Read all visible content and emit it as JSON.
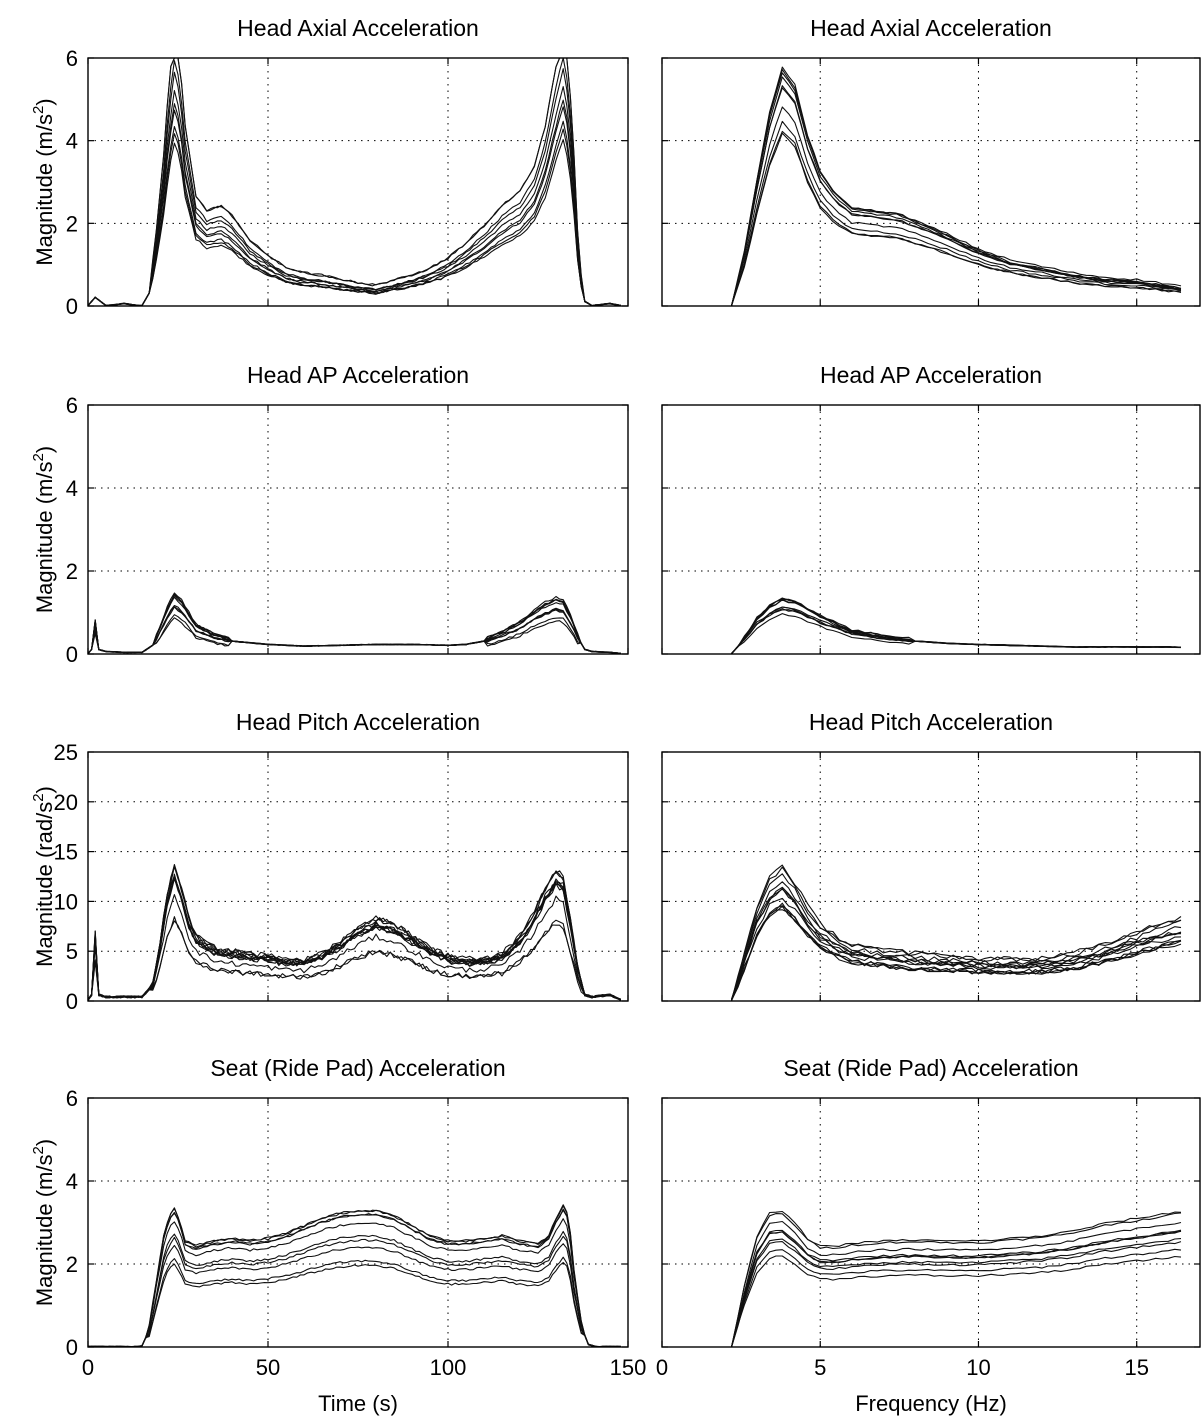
{
  "figure": {
    "x_label_time": "Time (s)",
    "x_label_freq": "Frequency (Hz)",
    "x_ticks_time": [
      "0",
      "50",
      "100",
      "150"
    ],
    "x_ticks_freq": [
      "0",
      "5",
      "10",
      "15"
    ]
  },
  "chart_data": [
    {
      "type": "line",
      "title": "Head Axial Acceleration",
      "xlabel": "",
      "ylabel": "Magnitude (m/s²)",
      "ylabel_base": "Magnitude (m/s",
      "ylabel_unit_sup": "2",
      "xlim": [
        0,
        150
      ],
      "ylim": [
        0,
        6
      ],
      "yticks": [
        0,
        2,
        4,
        6
      ],
      "ytick_labels": [
        "0",
        "2",
        "4",
        "6"
      ],
      "grid": true,
      "line_color": "#111111",
      "envelope": {
        "x": [
          0,
          2,
          5,
          10,
          14,
          15,
          17,
          19,
          21,
          22.5,
          24,
          25.5,
          27,
          30,
          33,
          37,
          40,
          45,
          50,
          55,
          60,
          65,
          70,
          75,
          80,
          85,
          90,
          95,
          100,
          105,
          110,
          115,
          120,
          124,
          127,
          129,
          130.5,
          132,
          133.5,
          135,
          136,
          137,
          138,
          140,
          145,
          148
        ],
        "y": [
          0,
          0.2,
          0,
          0.05,
          0,
          0,
          0.3,
          1.5,
          3.0,
          4.5,
          5.4,
          4.9,
          3.6,
          2.2,
          1.9,
          2.0,
          1.8,
          1.3,
          1.0,
          0.75,
          0.65,
          0.6,
          0.52,
          0.45,
          0.4,
          0.5,
          0.6,
          0.75,
          0.95,
          1.25,
          1.6,
          2.0,
          2.3,
          2.8,
          3.6,
          4.4,
          5.0,
          5.5,
          4.8,
          3.0,
          1.5,
          0.6,
          0.1,
          0,
          0.05,
          0
        ]
      },
      "n_traces": 10
    },
    {
      "type": "line",
      "title": "Head Axial Acceleration",
      "xlabel": "",
      "ylabel": "",
      "xlim": [
        0,
        17
      ],
      "ylim": [
        0,
        6
      ],
      "yticks": [
        0,
        2,
        4,
        6
      ],
      "grid": true,
      "line_color": "#111111",
      "envelope": {
        "x": [
          2.2,
          2.6,
          3.0,
          3.4,
          3.8,
          4.2,
          4.6,
          5.0,
          5.5,
          6.0,
          7.0,
          7.5,
          8.0,
          9.0,
          10.0,
          11.0,
          12.0,
          13.0,
          14.0,
          15.0,
          16.0,
          16.5
        ],
        "y": [
          0,
          1.2,
          2.8,
          4.3,
          5.3,
          4.9,
          3.8,
          3.0,
          2.5,
          2.2,
          2.1,
          2.05,
          1.9,
          1.6,
          1.25,
          1.0,
          0.85,
          0.7,
          0.6,
          0.55,
          0.45,
          0.4
        ]
      },
      "n_traces": 10
    },
    {
      "type": "line",
      "title": "Head AP Acceleration",
      "xlabel": "",
      "ylabel": "Magnitude (m/s²)",
      "ylabel_base": "Magnitude (m/s",
      "ylabel_unit_sup": "2",
      "xlim": [
        0,
        150
      ],
      "ylim": [
        0,
        6
      ],
      "yticks": [
        0,
        2,
        4,
        6
      ],
      "ytick_labels": [
        "0",
        "2",
        "4",
        "6"
      ],
      "grid": true,
      "line_color": "#111111",
      "envelope": {
        "x": [
          0,
          1,
          2,
          3,
          5,
          10,
          15,
          18,
          20,
          22,
          24,
          26,
          28,
          30,
          35,
          40,
          50,
          60,
          70,
          80,
          90,
          100,
          105,
          110,
          115,
          120,
          124,
          127,
          130,
          132,
          134,
          136,
          138,
          140,
          145,
          148
        ],
        "y": [
          0,
          0.1,
          0.7,
          0.1,
          0.05,
          0.03,
          0.03,
          0.2,
          0.55,
          0.95,
          1.25,
          1.1,
          0.85,
          0.6,
          0.4,
          0.3,
          0.22,
          0.18,
          0.2,
          0.22,
          0.22,
          0.2,
          0.22,
          0.3,
          0.45,
          0.65,
          0.9,
          1.05,
          1.15,
          1.1,
          0.8,
          0.4,
          0.1,
          0.05,
          0.03,
          0
        ]
      },
      "n_traces": 10
    },
    {
      "type": "line",
      "title": "Head AP Acceleration",
      "xlabel": "",
      "ylabel": "",
      "xlim": [
        0,
        17
      ],
      "ylim": [
        0,
        6
      ],
      "yticks": [
        0,
        2,
        4,
        6
      ],
      "grid": true,
      "line_color": "#111111",
      "envelope": {
        "x": [
          2.2,
          2.6,
          3.0,
          3.4,
          3.8,
          4.2,
          4.6,
          5.0,
          5.5,
          6.0,
          7.0,
          8.0,
          9.0,
          10.0,
          11.0,
          12.0,
          13.0,
          14.0,
          15.0,
          16.0,
          16.5
        ],
        "y": [
          0,
          0.35,
          0.75,
          1.0,
          1.15,
          1.1,
          0.95,
          0.8,
          0.65,
          0.5,
          0.38,
          0.3,
          0.25,
          0.22,
          0.2,
          0.18,
          0.16,
          0.16,
          0.16,
          0.16,
          0.15
        ]
      },
      "n_traces": 10
    },
    {
      "type": "line",
      "title": "Head Pitch Acceleration",
      "xlabel": "",
      "ylabel": "Magnitude (rad/s²)",
      "ylabel_base": "Magnitude (rad/s",
      "ylabel_unit_sup": "2",
      "xlim": [
        0,
        150
      ],
      "ylim": [
        0,
        25
      ],
      "yticks": [
        0,
        5,
        10,
        15,
        20,
        25
      ],
      "ytick_labels": [
        "0",
        "5",
        "10",
        "15",
        "20",
        "25"
      ],
      "grid": true,
      "line_color": "#111111",
      "envelope": {
        "x": [
          0,
          1,
          2,
          3,
          5,
          10,
          15,
          18,
          20,
          22,
          24,
          26,
          28,
          30,
          35,
          40,
          45,
          50,
          55,
          60,
          65,
          70,
          75,
          80,
          85,
          90,
          95,
          100,
          105,
          110,
          115,
          120,
          124,
          127,
          130,
          132,
          134,
          136,
          138,
          140,
          145,
          148
        ],
        "y": [
          0,
          0.5,
          6.0,
          0.5,
          0.3,
          0.3,
          0.3,
          1.5,
          5.0,
          9.0,
          11.5,
          9.5,
          7.0,
          5.5,
          4.5,
          4.2,
          4.0,
          3.8,
          3.5,
          3.5,
          4.0,
          5.0,
          6.2,
          7.0,
          6.5,
          5.5,
          4.5,
          3.8,
          3.5,
          3.6,
          4.0,
          5.5,
          7.5,
          9.5,
          11.0,
          10.5,
          7.0,
          3.0,
          0.5,
          0.3,
          0.5,
          0
        ]
      },
      "n_traces": 12
    },
    {
      "type": "line",
      "title": "Head Pitch Acceleration",
      "xlabel": "",
      "ylabel": "",
      "xlim": [
        0,
        17
      ],
      "ylim": [
        0,
        25
      ],
      "yticks": [
        0,
        5,
        10,
        15,
        20,
        25
      ],
      "grid": true,
      "line_color": "#111111",
      "envelope": {
        "x": [
          2.2,
          2.6,
          3.0,
          3.4,
          3.8,
          4.2,
          4.6,
          5.0,
          5.5,
          6.0,
          7.0,
          8.0,
          9.0,
          10.0,
          11.0,
          12.0,
          13.0,
          14.0,
          15.0,
          16.0,
          16.5
        ],
        "y": [
          0,
          4.0,
          8.0,
          10.5,
          11.5,
          10.0,
          8.0,
          6.5,
          5.5,
          4.8,
          4.3,
          4.0,
          3.8,
          3.6,
          3.5,
          3.6,
          4.0,
          4.8,
          5.8,
          6.8,
          7.2
        ]
      },
      "n_traces": 12
    },
    {
      "type": "line",
      "title": "Seat (Ride Pad) Acceleration",
      "xlabel": "",
      "ylabel": "Magnitude (m/s²)",
      "ylabel_base": "Magnitude (m/s",
      "ylabel_unit_sup": "2",
      "xlim": [
        0,
        150
      ],
      "ylim": [
        0,
        6
      ],
      "yticks": [
        0,
        2,
        4,
        6
      ],
      "ytick_labels": [
        "0",
        "2",
        "4",
        "6"
      ],
      "grid": true,
      "line_color": "#111111",
      "envelope": {
        "x": [
          0,
          5,
          10,
          14,
          15,
          17,
          19,
          21,
          22.5,
          24,
          25.5,
          27,
          30,
          35,
          40,
          45,
          50,
          55,
          60,
          65,
          70,
          75,
          80,
          85,
          90,
          95,
          100,
          105,
          110,
          115,
          120,
          125,
          128,
          130,
          132,
          133.5,
          135,
          137,
          139,
          141,
          145,
          148
        ],
        "y": [
          0,
          0,
          0,
          0,
          0.02,
          0.4,
          1.3,
          2.2,
          2.6,
          2.75,
          2.5,
          2.1,
          2.0,
          2.1,
          2.15,
          2.1,
          2.15,
          2.25,
          2.4,
          2.55,
          2.65,
          2.7,
          2.7,
          2.6,
          2.4,
          2.2,
          2.1,
          2.1,
          2.15,
          2.2,
          2.1,
          2.05,
          2.2,
          2.55,
          2.8,
          2.6,
          1.5,
          0.5,
          0.05,
          0,
          0,
          0
        ]
      },
      "n_traces": 10
    },
    {
      "type": "line",
      "title": "Seat (Ride Pad) Acceleration",
      "xlabel": "",
      "ylabel": "",
      "xlim": [
        0,
        17
      ],
      "ylim": [
        0,
        6
      ],
      "yticks": [
        0,
        2,
        4,
        6
      ],
      "grid": true,
      "line_color": "#111111",
      "envelope": {
        "x": [
          2.2,
          2.6,
          3.0,
          3.4,
          3.8,
          4.2,
          4.6,
          5.0,
          5.5,
          6.0,
          7.0,
          8.0,
          9.0,
          10.0,
          11.0,
          12.0,
          13.0,
          14.0,
          15.0,
          16.0,
          16.5
        ],
        "y": [
          0,
          1.2,
          2.2,
          2.65,
          2.7,
          2.45,
          2.15,
          2.0,
          2.0,
          2.05,
          2.1,
          2.12,
          2.1,
          2.1,
          2.15,
          2.2,
          2.3,
          2.45,
          2.55,
          2.65,
          2.7
        ]
      },
      "n_traces": 10
    }
  ]
}
